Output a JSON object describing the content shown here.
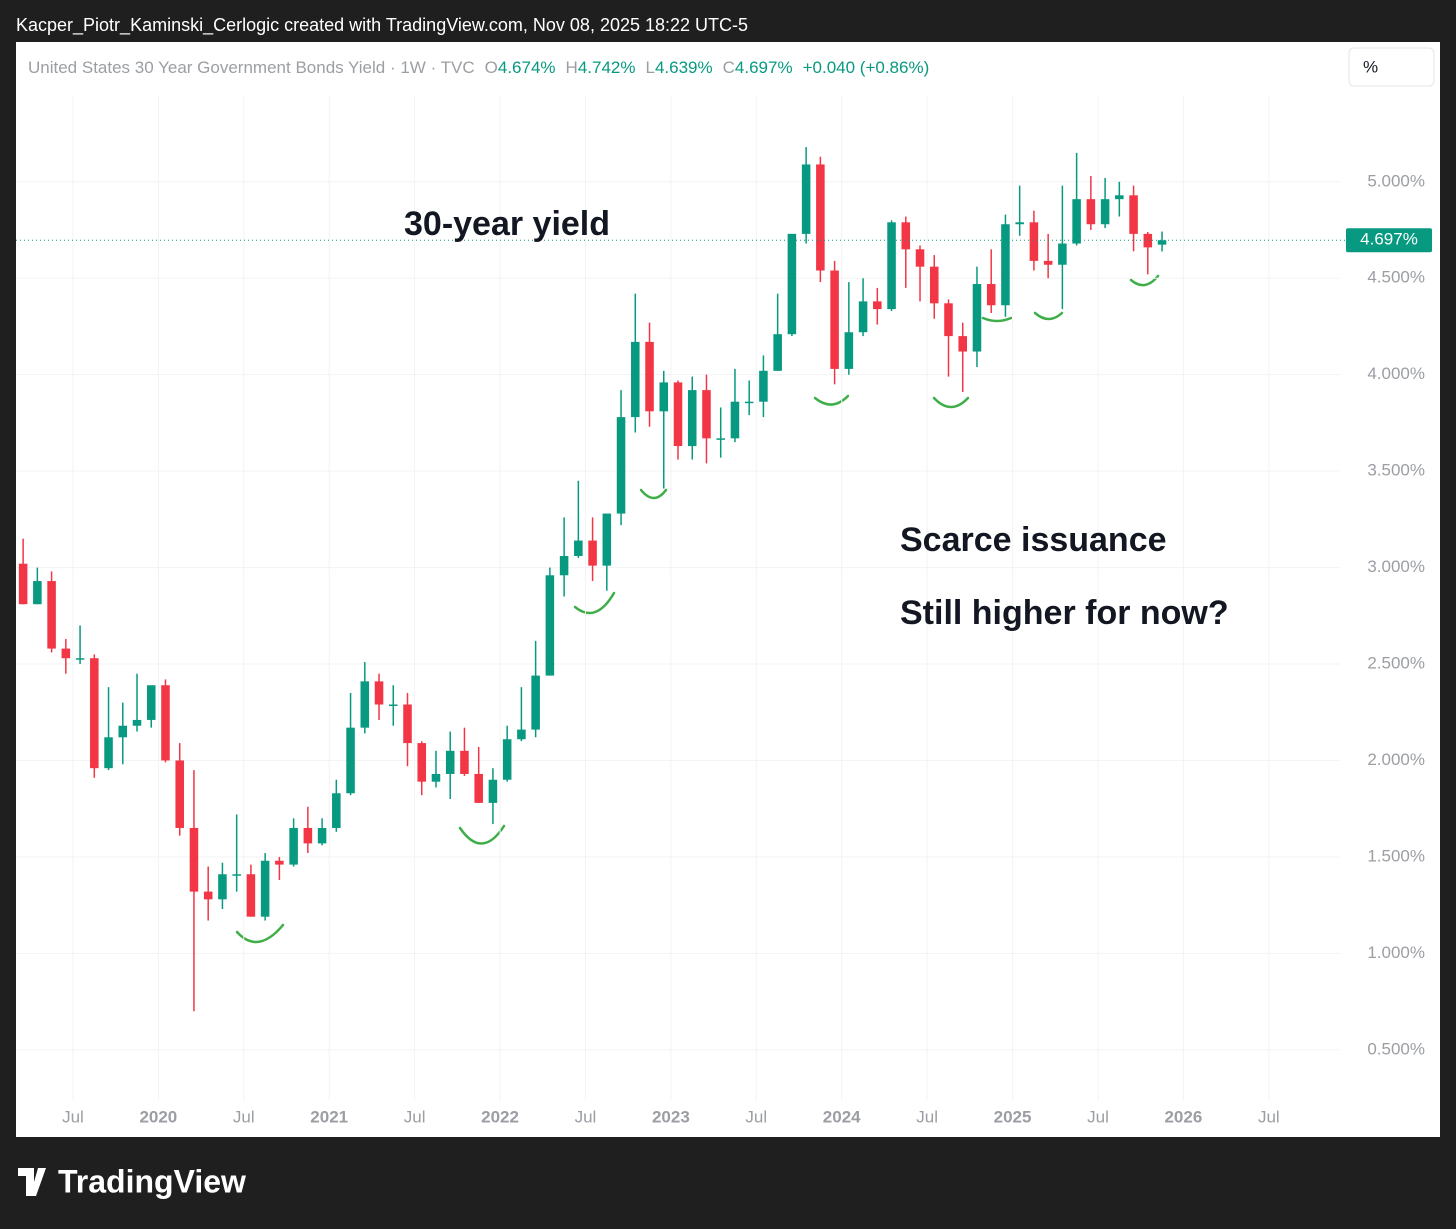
{
  "page": {
    "credit": "Kacper_Piotr_Kaminski_Cerlogic created with TradingView.com, Nov 08, 2025 18:22 UTC-5",
    "logo": "TradingView",
    "scale_button": "%"
  },
  "chart_data": {
    "type": "candlestick",
    "symbol": "United States 30 Year Government Bonds Yield · 1W · TVC",
    "quote": [
      {
        "key": "O",
        "value": "4.674%"
      },
      {
        "key": "H",
        "value": "4.742%"
      },
      {
        "key": "L",
        "value": "4.639%"
      },
      {
        "key": "C",
        "value": "4.697%"
      }
    ],
    "change": "+0.040 (+0.86%)",
    "annotations": [
      "30-year yield",
      "Scarce issuance",
      "Still higher for now?"
    ],
    "last_price": {
      "value": 4.697,
      "label": "4.697%"
    },
    "up_color": "#089981",
    "down_color": "#f23645",
    "grid": true,
    "x": [
      "2019-03",
      "2019-04",
      "2019-05",
      "2019-06",
      "2019-07",
      "2019-08",
      "2019-09",
      "2019-10",
      "2019-11",
      "2019-12",
      "2020-01",
      "2020-02",
      "2020-03",
      "2020-04",
      "2020-05",
      "2020-06",
      "2020-07",
      "2020-08",
      "2020-09",
      "2020-10",
      "2020-11",
      "2020-12",
      "2021-01",
      "2021-02",
      "2021-03",
      "2021-04",
      "2021-05",
      "2021-06",
      "2021-07",
      "2021-08",
      "2021-09",
      "2021-10",
      "2021-11",
      "2021-12",
      "2022-01",
      "2022-02",
      "2022-03",
      "2022-04",
      "2022-05",
      "2022-06",
      "2022-07",
      "2022-08",
      "2022-09",
      "2022-10",
      "2022-11",
      "2022-12",
      "2023-01",
      "2023-02",
      "2023-03",
      "2023-04",
      "2023-05",
      "2023-06",
      "2023-07",
      "2023-08",
      "2023-09",
      "2023-10",
      "2023-11",
      "2023-12",
      "2024-01",
      "2024-02",
      "2024-03",
      "2024-04",
      "2024-05",
      "2024-06",
      "2024-07",
      "2024-08",
      "2024-09",
      "2024-10",
      "2024-11",
      "2024-12",
      "2025-01",
      "2025-02",
      "2025-03",
      "2025-04",
      "2025-05",
      "2025-06",
      "2025-07",
      "2025-08",
      "2025-09",
      "2025-10",
      "2025-11"
    ],
    "open": [
      3.02,
      2.81,
      2.93,
      2.58,
      2.53,
      2.53,
      1.96,
      2.12,
      2.18,
      2.21,
      2.39,
      2.0,
      1.65,
      1.32,
      1.28,
      1.41,
      1.41,
      1.19,
      1.48,
      1.46,
      1.65,
      1.57,
      1.65,
      1.83,
      2.17,
      2.41,
      2.29,
      2.29,
      2.09,
      1.89,
      1.93,
      2.05,
      1.93,
      1.78,
      1.9,
      2.11,
      2.16,
      2.44,
      2.96,
      3.06,
      3.14,
      3.01,
      3.28,
      3.78,
      4.17,
      3.81,
      3.96,
      3.63,
      3.92,
      3.67,
      3.67,
      3.86,
      3.86,
      4.02,
      4.21,
      4.73,
      5.09,
      4.54,
      4.03,
      4.22,
      4.38,
      4.34,
      4.79,
      4.65,
      4.56,
      4.37,
      4.2,
      4.12,
      4.47,
      4.36,
      4.78,
      4.79,
      4.59,
      4.57,
      4.68,
      4.91,
      4.78,
      4.91,
      4.93,
      4.73,
      4.674
    ],
    "high": [
      3.15,
      3.0,
      2.98,
      2.63,
      2.7,
      2.55,
      2.38,
      2.3,
      2.45,
      2.37,
      2.42,
      2.09,
      1.95,
      1.45,
      1.47,
      1.72,
      1.46,
      1.52,
      1.5,
      1.7,
      1.76,
      1.7,
      1.9,
      2.35,
      2.51,
      2.45,
      2.39,
      2.35,
      2.1,
      2.05,
      2.15,
      2.17,
      2.07,
      1.96,
      2.18,
      2.38,
      2.62,
      3.0,
      3.26,
      3.45,
      3.26,
      3.28,
      3.92,
      4.42,
      4.27,
      4.02,
      3.97,
      3.99,
      4.0,
      3.83,
      4.03,
      3.97,
      4.1,
      4.42,
      4.73,
      5.18,
      5.13,
      4.59,
      4.48,
      4.5,
      4.45,
      4.8,
      4.82,
      4.67,
      4.62,
      4.39,
      4.27,
      4.56,
      4.65,
      4.83,
      4.98,
      4.85,
      4.73,
      4.98,
      5.15,
      5.03,
      5.02,
      5.0,
      4.98,
      4.74,
      4.742
    ],
    "low": [
      2.81,
      2.81,
      2.56,
      2.45,
      2.5,
      1.91,
      1.95,
      1.98,
      2.15,
      2.17,
      1.99,
      1.61,
      0.7,
      1.17,
      1.23,
      1.32,
      1.19,
      1.17,
      1.38,
      1.45,
      1.52,
      1.56,
      1.63,
      1.82,
      2.14,
      2.21,
      2.18,
      1.97,
      1.82,
      1.86,
      1.8,
      1.92,
      1.78,
      1.67,
      1.89,
      2.1,
      2.12,
      2.44,
      2.85,
      3.05,
      2.93,
      2.88,
      3.22,
      3.7,
      3.73,
      3.41,
      3.56,
      3.56,
      3.54,
      3.57,
      3.65,
      3.79,
      3.78,
      4.02,
      4.2,
      4.68,
      4.48,
      3.95,
      4.0,
      4.2,
      4.26,
      4.33,
      4.45,
      4.38,
      4.29,
      3.99,
      3.91,
      4.04,
      4.32,
      4.3,
      4.72,
      4.54,
      4.5,
      4.34,
      4.67,
      4.75,
      4.76,
      4.82,
      4.64,
      4.52,
      4.639
    ],
    "close": [
      2.81,
      2.93,
      2.58,
      2.53,
      2.53,
      1.96,
      2.12,
      2.18,
      2.21,
      2.39,
      2.0,
      1.65,
      1.32,
      1.28,
      1.41,
      1.41,
      1.19,
      1.48,
      1.46,
      1.65,
      1.57,
      1.65,
      1.83,
      2.17,
      2.41,
      2.29,
      2.29,
      2.09,
      1.89,
      1.93,
      2.05,
      1.93,
      1.78,
      1.9,
      2.11,
      2.16,
      2.44,
      2.96,
      3.06,
      3.14,
      3.01,
      3.28,
      3.78,
      4.17,
      3.81,
      3.96,
      3.63,
      3.92,
      3.67,
      3.67,
      3.86,
      3.86,
      4.02,
      4.21,
      4.73,
      5.09,
      4.54,
      4.03,
      4.22,
      4.38,
      4.34,
      4.79,
      4.65,
      4.56,
      4.37,
      4.2,
      4.12,
      4.47,
      4.36,
      4.78,
      4.79,
      4.59,
      4.57,
      4.68,
      4.91,
      4.78,
      4.91,
      4.93,
      4.73,
      4.66,
      4.697
    ],
    "xlim": [
      "2019-03",
      "2026-12"
    ],
    "xticks": [
      {
        "value": "2019-07",
        "label": "Jul"
      },
      {
        "value": "2020-01",
        "label": "2020"
      },
      {
        "value": "2020-07",
        "label": "Jul"
      },
      {
        "value": "2021-01",
        "label": "2021"
      },
      {
        "value": "2021-07",
        "label": "Jul"
      },
      {
        "value": "2022-01",
        "label": "2022"
      },
      {
        "value": "2022-07",
        "label": "Jul"
      },
      {
        "value": "2023-01",
        "label": "2023"
      },
      {
        "value": "2023-07",
        "label": "Jul"
      },
      {
        "value": "2024-01",
        "label": "2024"
      },
      {
        "value": "2024-07",
        "label": "Jul"
      },
      {
        "value": "2025-01",
        "label": "2025"
      },
      {
        "value": "2025-07",
        "label": "Jul"
      },
      {
        "value": "2026-01",
        "label": "2026"
      },
      {
        "value": "2026-07",
        "label": "Jul"
      }
    ],
    "ylim": [
      0.25,
      5.45
    ],
    "yticks": [
      {
        "value": 0.5,
        "label": "0.500%"
      },
      {
        "value": 1,
        "label": "1.000%"
      },
      {
        "value": 1.5,
        "label": "1.500%"
      },
      {
        "value": 2,
        "label": "2.000%"
      },
      {
        "value": 2.5,
        "label": "2.500%"
      },
      {
        "value": 3,
        "label": "3.000%"
      },
      {
        "value": 3.5,
        "label": "3.500%"
      },
      {
        "value": 4,
        "label": "4.000%"
      },
      {
        "value": 4.5,
        "label": "4.500%"
      },
      {
        "value": 5,
        "label": "5.000%"
      }
    ]
  }
}
